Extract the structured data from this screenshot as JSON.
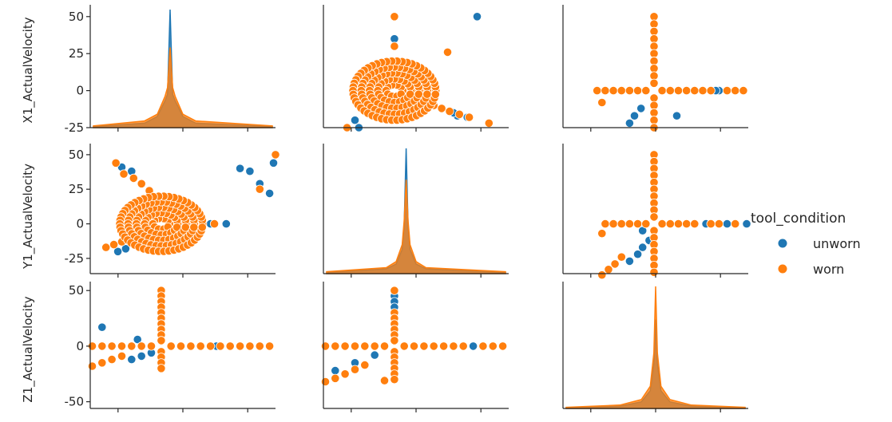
{
  "chart_data": {
    "type": "scatter",
    "layout": "pairplot",
    "variables": [
      "X1_ActualVelocity",
      "Y1_ActualVelocity",
      "Z1_ActualVelocity"
    ],
    "hue": "tool_condition",
    "legend": {
      "title": "tool_condition",
      "placement": "center-right",
      "entries": [
        {
          "name": "unworn",
          "color": "#1f77b4"
        },
        {
          "name": "worn",
          "color": "#ff7f0e"
        }
      ]
    },
    "colors": {
      "unworn": "#1f77b4",
      "worn": "#ff7f0e"
    },
    "grid": false,
    "axes": {
      "X1_ActualVelocity": {
        "lim": [
          -25,
          58
        ],
        "ticks": [
          -25,
          0,
          25,
          50
        ]
      },
      "Y1_ActualVelocity": {
        "lim": [
          -36,
          58
        ],
        "ticks": [
          -25,
          0,
          25,
          50
        ]
      },
      "Z1_ActualVelocity": {
        "lim": [
          -56,
          58
        ],
        "ticks": [
          -50,
          0,
          50
        ]
      }
    },
    "scatter_xlim": {
      "X1_ActualVelocity": [
        -36,
        58
      ],
      "Y1_ActualVelocity": [
        -36,
        58
      ],
      "Z1_ActualVelocity": [
        -56,
        58
      ]
    },
    "tick_labels": {
      "X1_ActualVelocity": [
        "50",
        "25",
        "0",
        "-25"
      ],
      "Y1_ActualVelocity": [
        "50",
        "25",
        "0",
        "-25"
      ],
      "Z1_ActualVelocity": [
        "50",
        "0",
        "-50"
      ]
    },
    "diagonal_kde": {
      "X1_ActualVelocity": {
        "unworn": {
          "x": [
            -30,
            -10,
            -5,
            -2,
            -1,
            0,
            1,
            2,
            5,
            10,
            40
          ],
          "y": [
            0.5,
            2,
            5,
            12,
            15,
            53,
            15,
            12,
            5,
            2,
            0.5
          ]
        },
        "worn": {
          "x": [
            -30,
            -10,
            -5,
            -2,
            -1,
            0,
            1,
            2,
            5,
            10,
            40
          ],
          "y": [
            0.8,
            3,
            6,
            14,
            18,
            36,
            18,
            14,
            6,
            3,
            0.8
          ]
        }
      },
      "Y1_ActualVelocity": {
        "unworn": {
          "x": [
            -40,
            -10,
            -5,
            -2,
            -1,
            0,
            1,
            2,
            5,
            10,
            50
          ],
          "y": [
            0.5,
            2,
            4,
            10,
            20,
            52,
            20,
            10,
            4,
            2,
            0.5
          ]
        },
        "worn": {
          "x": [
            -40,
            -10,
            -5,
            -2,
            -1,
            0,
            1,
            2,
            5,
            10,
            50
          ],
          "y": [
            0.8,
            2.5,
            5,
            12,
            22,
            39,
            22,
            12,
            5,
            2.5,
            0.8
          ]
        }
      },
      "Z1_ActualVelocity": {
        "unworn": {
          "x": [
            -50,
            -20,
            -8,
            -3,
            -1,
            0,
            1,
            3,
            8,
            20,
            50
          ],
          "y": [
            0.3,
            1,
            3,
            8,
            20,
            40,
            20,
            8,
            3,
            1,
            0.3
          ]
        },
        "worn": {
          "x": [
            -50,
            -20,
            -8,
            -3,
            -1,
            0,
            1,
            3,
            8,
            20,
            50
          ],
          "y": [
            0.5,
            1.5,
            4,
            10,
            25,
            55,
            25,
            10,
            4,
            1.5,
            0.5
          ]
        }
      }
    },
    "pairs": {
      "Y1_ActualVelocity|X1_ActualVelocity": {
        "unworn": [
          [
            -22,
            -20
          ],
          [
            -18,
            -18
          ],
          [
            -14,
            -15
          ],
          [
            -10,
            -12
          ],
          [
            50,
            29
          ],
          [
            45,
            38
          ],
          [
            40,
            40
          ],
          [
            -15,
            38
          ],
          [
            -20,
            41
          ],
          [
            57,
            44
          ],
          [
            55,
            22
          ],
          [
            33,
            0
          ],
          [
            25,
            0
          ]
        ],
        "worn": [
          [
            -28,
            -17
          ],
          [
            -24,
            -15
          ],
          [
            -20,
            -13
          ],
          [
            -16,
            -11
          ],
          [
            -12,
            -9
          ],
          [
            -8,
            -7
          ],
          [
            -23,
            44
          ],
          [
            -19,
            36
          ],
          [
            -14,
            33
          ],
          [
            -10,
            29
          ],
          [
            -6,
            24
          ],
          [
            58,
            50
          ],
          [
            59,
            0
          ],
          [
            27,
            0
          ],
          [
            50,
            25
          ]
        ]
      },
      "Z1_ActualVelocity|X1_ActualVelocity": {
        "unworn": [
          [
            -30,
            17
          ],
          [
            -12,
            6
          ],
          [
            40,
            0
          ],
          [
            45,
            0
          ],
          [
            28,
            0
          ],
          [
            20,
            0
          ],
          [
            -15,
            -12
          ],
          [
            -10,
            -9
          ],
          [
            -5,
            -6
          ]
        ],
        "worn": [
          [
            -35,
            -18
          ],
          [
            -30,
            -15
          ],
          [
            -25,
            -12
          ],
          [
            -20,
            -9
          ],
          [
            -35,
            0
          ],
          [
            -30,
            0
          ],
          [
            -25,
            0
          ],
          [
            -20,
            0
          ],
          [
            -15,
            0
          ],
          [
            -10,
            0
          ],
          [
            -5,
            0
          ],
          [
            5,
            0
          ],
          [
            10,
            0
          ],
          [
            15,
            0
          ],
          [
            20,
            0
          ],
          [
            25,
            0
          ],
          [
            30,
            0
          ],
          [
            35,
            0
          ],
          [
            40,
            0
          ],
          [
            45,
            0
          ],
          [
            50,
            0
          ],
          [
            55,
            0
          ],
          [
            0,
            50
          ],
          [
            0,
            45
          ],
          [
            0,
            40
          ],
          [
            0,
            35
          ],
          [
            0,
            30
          ],
          [
            0,
            25
          ],
          [
            0,
            20
          ],
          [
            0,
            15
          ],
          [
            0,
            10
          ],
          [
            0,
            5
          ],
          [
            0,
            -5
          ],
          [
            0,
            -10
          ],
          [
            0,
            -15
          ],
          [
            0,
            -20
          ]
        ]
      },
      "X1_ActualVelocity|Y1_ActualVelocity": {
        "unworn": [
          [
            42,
            50
          ],
          [
            0,
            35
          ],
          [
            -20,
            -20
          ],
          [
            -18,
            -25
          ],
          [
            32,
            -17
          ],
          [
            37,
            -18
          ],
          [
            30,
            -15
          ]
        ],
        "worn": [
          [
            0,
            50
          ],
          [
            0,
            30
          ],
          [
            27,
            26
          ],
          [
            -32,
            -32
          ],
          [
            -28,
            -28
          ],
          [
            -24,
            -25
          ],
          [
            20,
            -10
          ],
          [
            24,
            -12
          ],
          [
            28,
            -14
          ],
          [
            33,
            -16
          ],
          [
            38,
            -18
          ],
          [
            48,
            -22
          ],
          [
            60,
            50
          ]
        ]
      },
      "Z1_ActualVelocity|Y1_ActualVelocity": {
        "unworn": [
          [
            -50,
            -8
          ],
          [
            0,
            45
          ],
          [
            0,
            40
          ],
          [
            0,
            35
          ],
          [
            -30,
            -22
          ],
          [
            -20,
            -15
          ],
          [
            20,
            0
          ],
          [
            40,
            0
          ],
          [
            45,
            0
          ],
          [
            30,
            0
          ],
          [
            -10,
            -8
          ]
        ],
        "worn": [
          [
            -50,
            0
          ],
          [
            -45,
            0
          ],
          [
            -40,
            0
          ],
          [
            -35,
            0
          ],
          [
            -30,
            0
          ],
          [
            -25,
            0
          ],
          [
            -20,
            0
          ],
          [
            -15,
            0
          ],
          [
            -10,
            0
          ],
          [
            -5,
            0
          ],
          [
            5,
            0
          ],
          [
            10,
            0
          ],
          [
            15,
            0
          ],
          [
            20,
            0
          ],
          [
            25,
            0
          ],
          [
            30,
            0
          ],
          [
            35,
            0
          ],
          [
            45,
            0
          ],
          [
            50,
            0
          ],
          [
            55,
            0
          ],
          [
            0,
            50
          ],
          [
            0,
            30
          ],
          [
            0,
            25
          ],
          [
            0,
            20
          ],
          [
            0,
            15
          ],
          [
            0,
            10
          ],
          [
            0,
            5
          ],
          [
            0,
            -5
          ],
          [
            0,
            -10
          ],
          [
            0,
            -15
          ],
          [
            0,
            -20
          ],
          [
            0,
            -25
          ],
          [
            0,
            -30
          ],
          [
            -35,
            -32
          ],
          [
            -30,
            -29
          ],
          [
            -25,
            -25
          ],
          [
            -20,
            -21
          ],
          [
            -15,
            -17
          ],
          [
            -5,
            -31
          ]
        ]
      },
      "X1_ActualVelocity|Z1_ActualVelocity": {
        "unworn": [
          [
            -20,
            -27
          ],
          [
            -15,
            -22
          ],
          [
            -12,
            -17
          ],
          [
            -8,
            -12
          ],
          [
            14,
            -17
          ],
          [
            28,
            -47
          ],
          [
            40,
            0
          ],
          [
            45,
            0
          ],
          [
            38,
            0
          ],
          [
            30,
            0
          ],
          [
            50,
            0
          ]
        ],
        "worn": [
          [
            -35,
            0
          ],
          [
            -30,
            0
          ],
          [
            -25,
            0
          ],
          [
            -20,
            0
          ],
          [
            -15,
            0
          ],
          [
            -10,
            0
          ],
          [
            -5,
            0
          ],
          [
            5,
            0
          ],
          [
            10,
            0
          ],
          [
            15,
            0
          ],
          [
            20,
            0
          ],
          [
            25,
            0
          ],
          [
            30,
            0
          ],
          [
            35,
            0
          ],
          [
            45,
            0
          ],
          [
            50,
            0
          ],
          [
            55,
            0
          ],
          [
            0,
            50
          ],
          [
            0,
            45
          ],
          [
            0,
            40
          ],
          [
            0,
            35
          ],
          [
            0,
            30
          ],
          [
            0,
            25
          ],
          [
            0,
            20
          ],
          [
            0,
            15
          ],
          [
            0,
            10
          ],
          [
            0,
            5
          ],
          [
            0,
            -5
          ],
          [
            0,
            -10
          ],
          [
            0,
            -15
          ],
          [
            0,
            -20
          ],
          [
            0,
            -25
          ],
          [
            0,
            -30
          ],
          [
            0,
            -35
          ],
          [
            0,
            -40
          ],
          [
            0,
            -45
          ],
          [
            0,
            -50
          ],
          [
            -32,
            -8
          ],
          [
            -30,
            -37
          ],
          [
            -26,
            -32
          ],
          [
            -22,
            -28
          ]
        ]
      },
      "Y1_ActualVelocity|Z1_ActualVelocity": {
        "unworn": [
          [
            -15,
            -27
          ],
          [
            -10,
            -22
          ],
          [
            -7,
            -17
          ],
          [
            -3,
            -12
          ],
          [
            -7,
            -5
          ],
          [
            32,
            0
          ],
          [
            45,
            0
          ],
          [
            -8,
            -47
          ],
          [
            57,
            0
          ]
        ],
        "worn": [
          [
            -32,
            -7
          ],
          [
            -30,
            0
          ],
          [
            -25,
            0
          ],
          [
            -20,
            0
          ],
          [
            -15,
            0
          ],
          [
            -10,
            0
          ],
          [
            -5,
            0
          ],
          [
            5,
            0
          ],
          [
            10,
            0
          ],
          [
            15,
            0
          ],
          [
            20,
            0
          ],
          [
            25,
            0
          ],
          [
            35,
            0
          ],
          [
            40,
            0
          ],
          [
            50,
            0
          ],
          [
            60,
            0
          ],
          [
            0,
            50
          ],
          [
            0,
            45
          ],
          [
            0,
            40
          ],
          [
            0,
            35
          ],
          [
            0,
            30
          ],
          [
            0,
            25
          ],
          [
            0,
            20
          ],
          [
            0,
            15
          ],
          [
            0,
            10
          ],
          [
            0,
            5
          ],
          [
            0,
            -5
          ],
          [
            0,
            -10
          ],
          [
            0,
            -15
          ],
          [
            0,
            -20
          ],
          [
            0,
            -25
          ],
          [
            0,
            -30
          ],
          [
            0,
            -35
          ],
          [
            0,
            -40
          ],
          [
            0,
            -45
          ],
          [
            0,
            -50
          ],
          [
            -32,
            -37
          ],
          [
            -28,
            -33
          ],
          [
            -24,
            -29
          ],
          [
            -20,
            -24
          ]
        ]
      }
    }
  }
}
